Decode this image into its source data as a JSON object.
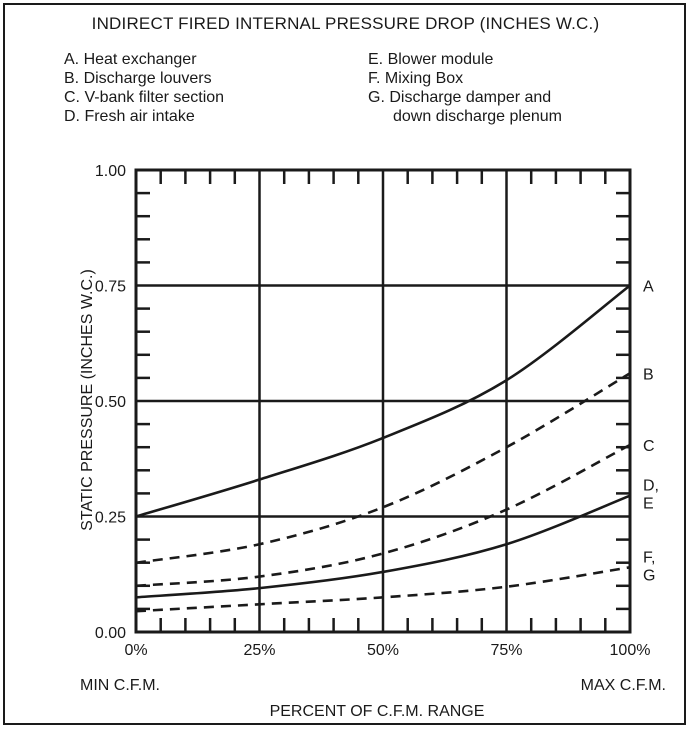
{
  "chart_data": {
    "type": "line",
    "title": "INDIRECT FIRED INTERNAL PRESSURE DROP (INCHES W.C.)",
    "legend": {
      "left": [
        "A. Heat exchanger",
        "B. Discharge louvers",
        "C. V-bank filter section",
        "D. Fresh air intake"
      ],
      "right": [
        "E. Blower module",
        "F. Mixing Box",
        "G. Discharge damper and",
        "down discharge plenum"
      ]
    },
    "ylabel": "STATIC PRESSURE (INCHES W.C.)",
    "xlabel": "PERCENT OF C.F.M. RANGE",
    "x_min_label": "MIN C.F.M.",
    "x_max_label": "MAX C.F.M.",
    "x_ticks": [
      "0%",
      "25%",
      "50%",
      "75%",
      "100%"
    ],
    "y_ticks": [
      "0.00",
      "0.25",
      "0.50",
      "0.75",
      "1.00"
    ],
    "xlim": [
      0,
      100
    ],
    "ylim": [
      0,
      1.0
    ],
    "grid": true,
    "series": [
      {
        "name": "A",
        "label_lines": [
          "A"
        ],
        "style": "solid",
        "x": [
          0,
          25,
          50,
          75,
          100
        ],
        "values": [
          0.25,
          0.33,
          0.42,
          0.545,
          0.75
        ]
      },
      {
        "name": "B",
        "label_lines": [
          "B"
        ],
        "style": "dashed",
        "x": [
          0,
          25,
          50,
          75,
          100
        ],
        "values": [
          0.15,
          0.19,
          0.27,
          0.4,
          0.56
        ]
      },
      {
        "name": "C",
        "label_lines": [
          "C"
        ],
        "style": "dashed",
        "x": [
          0,
          25,
          50,
          75,
          100
        ],
        "values": [
          0.1,
          0.12,
          0.17,
          0.265,
          0.405
        ]
      },
      {
        "name": "D, E",
        "label_lines": [
          "D,",
          "E"
        ],
        "style": "solid",
        "x": [
          0,
          25,
          50,
          75,
          100
        ],
        "values": [
          0.075,
          0.095,
          0.13,
          0.19,
          0.295
        ]
      },
      {
        "name": "F, G",
        "label_lines": [
          "F,",
          "G"
        ],
        "style": "dashed",
        "x": [
          0,
          25,
          50,
          75,
          100
        ],
        "values": [
          0.045,
          0.06,
          0.075,
          0.098,
          0.14
        ]
      }
    ]
  }
}
